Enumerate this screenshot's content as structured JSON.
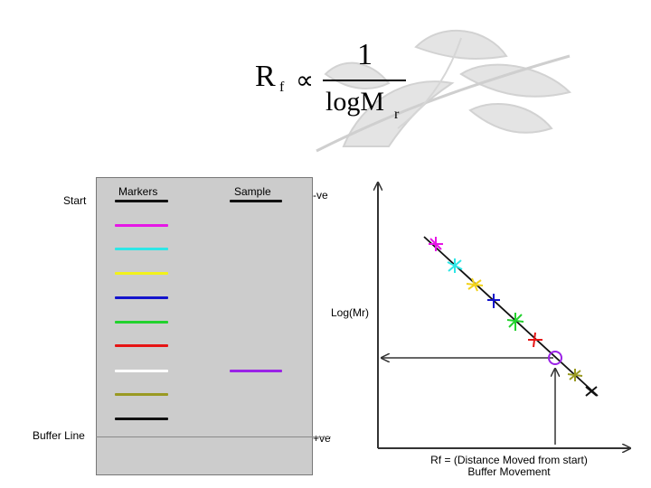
{
  "formula": {
    "lhs": "R",
    "lhs_sub": "f",
    "relation": "∝",
    "numerator": "1",
    "denominator": "logM",
    "denominator_sub": "r"
  },
  "gel": {
    "col_markers": "Markers",
    "col_sample": "Sample",
    "label_start": "Start",
    "label_buffer_line": "Buffer Line",
    "label_negative": "-ve",
    "label_positive": "+ve",
    "marker_bands": [
      {
        "color": "#111111"
      },
      {
        "color": "#e617e6"
      },
      {
        "color": "#2ee6e6"
      },
      {
        "color": "#f2f21a"
      },
      {
        "color": "#1414cc"
      },
      {
        "color": "#22d22d"
      },
      {
        "color": "#e61414"
      },
      {
        "color": "#ffffff"
      },
      {
        "color": "#999922"
      },
      {
        "color": "#111111"
      }
    ],
    "sample_bands": [
      {
        "color": "#111111"
      },
      {
        "color": "#9a22e6"
      }
    ]
  },
  "plot": {
    "y_axis_label": "Log(Mr)",
    "x_axis_label_line1": "Rf = (Distance Moved from start)",
    "x_axis_label_line2": "Buffer Movement",
    "fit_line_color": "#111111",
    "points": [
      {
        "color": "#e617e6"
      },
      {
        "color": "#2ee6e6"
      },
      {
        "color": "#f2d21a"
      },
      {
        "color": "#1414cc"
      },
      {
        "color": "#22d22d"
      },
      {
        "color": "#e61414"
      },
      {
        "color": "#999922"
      },
      {
        "color": "#111111"
      }
    ],
    "sample_point_color": "#9a22e6"
  }
}
